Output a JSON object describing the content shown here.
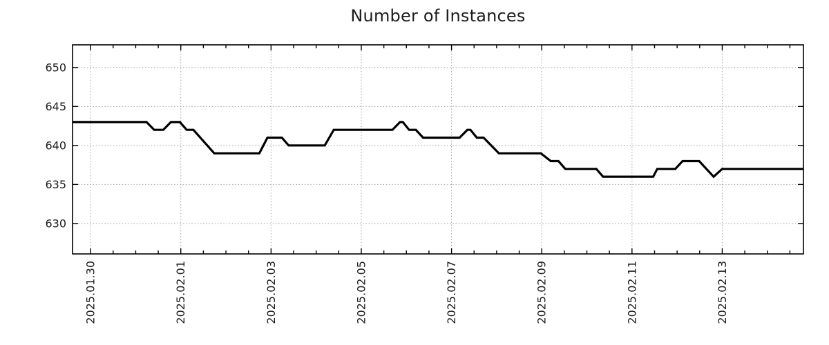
{
  "title": "Number of Instances",
  "colors": {
    "line": "#000000",
    "grid": "#a6a6a6",
    "border": "#000000",
    "text": "#1c1c1c",
    "background": "#ffffff"
  },
  "chart_data": {
    "type": "line",
    "title": "Number of Instances",
    "xlabel": "",
    "ylabel": "",
    "legend": "none",
    "grid": true,
    "x_unit": "days since 2025-01-30 00:00",
    "xlim": [
      -0.4,
      15.8
    ],
    "ylim": [
      626.1,
      652.9
    ],
    "y_ticks": [
      630,
      635,
      640,
      645,
      650
    ],
    "x_ticks": [
      {
        "t": 0,
        "label": "2025.01.30"
      },
      {
        "t": 2,
        "label": "2025.02.01"
      },
      {
        "t": 4,
        "label": "2025.02.03"
      },
      {
        "t": 6,
        "label": "2025.02.05"
      },
      {
        "t": 8,
        "label": "2025.02.07"
      },
      {
        "t": 10,
        "label": "2025.02.09"
      },
      {
        "t": 12,
        "label": "2025.02.11"
      },
      {
        "t": 14,
        "label": "2025.02.13"
      }
    ],
    "x_minor_step": 0.5,
    "points": [
      [
        -0.4,
        643
      ],
      [
        1.24,
        643
      ],
      [
        1.41,
        642
      ],
      [
        1.61,
        642
      ],
      [
        1.78,
        643
      ],
      [
        1.98,
        643
      ],
      [
        2.13,
        642
      ],
      [
        2.28,
        642
      ],
      [
        2.74,
        639
      ],
      [
        3.74,
        639
      ],
      [
        3.92,
        641
      ],
      [
        4.24,
        641
      ],
      [
        4.39,
        640
      ],
      [
        5.19,
        640
      ],
      [
        5.39,
        642
      ],
      [
        6.69,
        642
      ],
      [
        6.86,
        643
      ],
      [
        6.92,
        643
      ],
      [
        7.06,
        642
      ],
      [
        7.21,
        642
      ],
      [
        7.37,
        641
      ],
      [
        8.18,
        641
      ],
      [
        8.35,
        642
      ],
      [
        8.42,
        642
      ],
      [
        8.56,
        641
      ],
      [
        8.71,
        641
      ],
      [
        9.05,
        639
      ],
      [
        9.98,
        639
      ],
      [
        10.2,
        638
      ],
      [
        10.37,
        638
      ],
      [
        10.52,
        637
      ],
      [
        11.21,
        637
      ],
      [
        11.36,
        636
      ],
      [
        12.47,
        636
      ],
      [
        12.56,
        637
      ],
      [
        12.96,
        637
      ],
      [
        13.12,
        638
      ],
      [
        13.49,
        638
      ],
      [
        13.81,
        636
      ],
      [
        14.0,
        637
      ],
      [
        15.8,
        637
      ]
    ]
  }
}
